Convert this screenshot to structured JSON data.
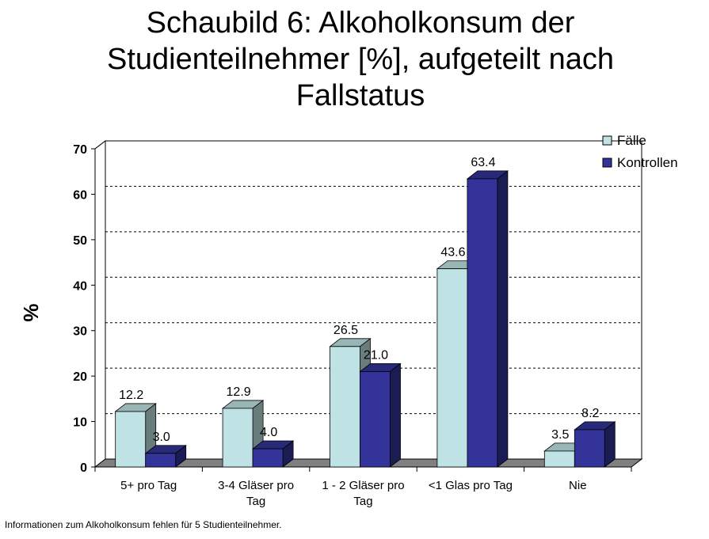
{
  "chart_data": {
    "type": "bar",
    "title_lines": [
      "Schaubild 6: Alkoholkonsum der",
      "Studienteilnehmer [%], aufgeteilt nach",
      "Fallstatus"
    ],
    "ylabel": "%",
    "xlabel": "",
    "ylim": [
      0,
      70
    ],
    "y_ticks": [
      "0",
      "10",
      "20",
      "30",
      "40",
      "50",
      "60",
      "70"
    ],
    "categories": [
      [
        "5+ pro Tag"
      ],
      [
        "3-4 Gläser pro",
        "Tag"
      ],
      [
        "1 - 2 Gläser pro",
        "Tag"
      ],
      [
        "<1 Glas pro Tag"
      ],
      [
        "Nie"
      ]
    ],
    "series": [
      {
        "name": "Fälle",
        "values": [
          12.2,
          12.9,
          26.5,
          43.6,
          3.5
        ],
        "labels": [
          "12.2",
          "12.9",
          "26.5",
          "43.6",
          "3.5"
        ],
        "color": "#bfe3e4"
      },
      {
        "name": "Kontrollen",
        "values": [
          3.0,
          4.0,
          21.0,
          63.4,
          8.2
        ],
        "labels": [
          "3.0",
          "4.0",
          "21.0",
          "63.4",
          "8.2"
        ],
        "color": "#333399"
      }
    ],
    "grid": "dashed-horizontal",
    "legend_position": "top-right",
    "style": "3d-bar"
  },
  "footnote": "Informationen zum Alkoholkonsum fehlen für 5 Studienteilnehmer."
}
